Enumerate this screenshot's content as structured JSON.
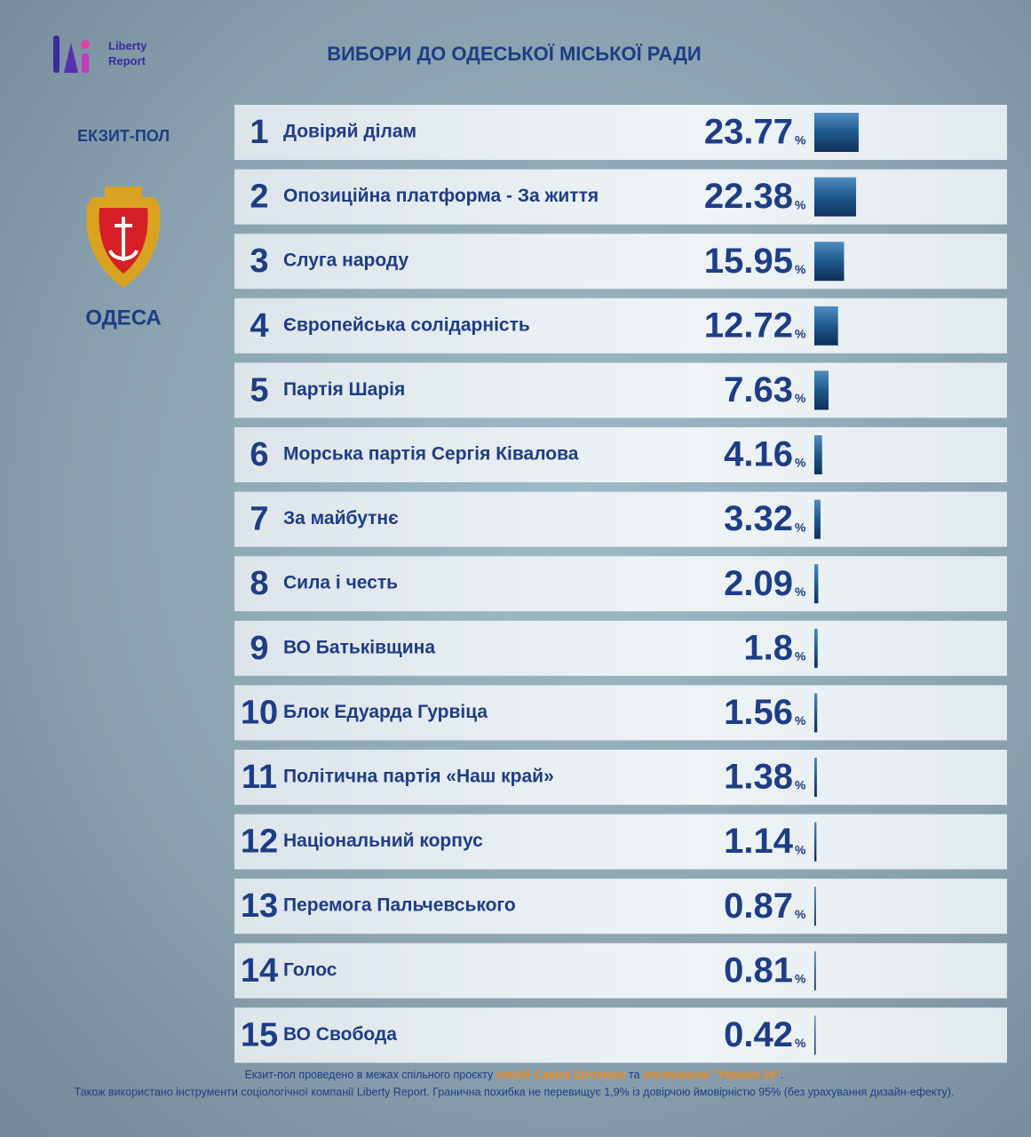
{
  "logo": "Liberty Report",
  "side": {
    "label": "ЕКЗИТ-ПОЛ",
    "city": "ОДЕСА"
  },
  "chart_data": {
    "type": "bar",
    "title": "ВИБОРИ ДО ОДЕСЬКОЇ МІСЬКОЇ РАДИ",
    "ranks": [
      1,
      2,
      3,
      4,
      5,
      6,
      7,
      8,
      9,
      10,
      11,
      12,
      13,
      14,
      15
    ],
    "categories": [
      "Довіряй ділам",
      "Опозиційна платформа - За життя",
      "Слуга народу",
      "Європейська солідарність",
      "Партія Шарія",
      "Морська партія Сергія Ківалова",
      "За майбутнє",
      "Сила і честь",
      "ВО Батьківщина",
      "Блок Едуарда Гурвіца",
      "Політична партія «Наш край»",
      "Національний корпус",
      "Перемога Пальчевського",
      "Голос",
      "ВО Свобода"
    ],
    "values": [
      23.77,
      22.38,
      15.95,
      12.72,
      7.63,
      4.16,
      3.32,
      2.09,
      1.8,
      1.56,
      1.38,
      1.14,
      0.87,
      0.81,
      0.42
    ],
    "unit": "%",
    "color": "#1f5a8c"
  },
  "footer": {
    "line1": [
      "Екзит-пол проведено в межах спільного проєкту ",
      "студії Савіка Шустера",
      " та ",
      "телеканалу \"Україна 24\"",
      "."
    ],
    "line2": "Також використано інструменти соціологічної компанії Liberty Report. Гранична похибка не перевищує 1,9% із довірчою ймовірністю 95% (без урахування дизайн-ефекту)."
  }
}
